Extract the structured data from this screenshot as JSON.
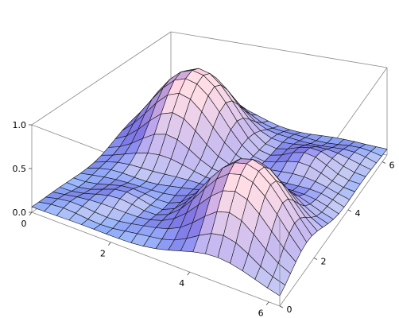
{
  "chart_data": {
    "type": "surface3d",
    "title": "",
    "xlabel": "",
    "ylabel": "",
    "zlabel": "",
    "function": "sin^2(x/2) * sin^2(y/2) with two dominant peaks near (pi, pi) region",
    "xlim": [
      0,
      6.28
    ],
    "ylim": [
      0,
      6.28
    ],
    "zlim": [
      0,
      1.0
    ],
    "grid_lines": 20,
    "x_ticks": [
      "0",
      "2",
      "4",
      "6"
    ],
    "y_ticks": [
      "0",
      "2",
      "4",
      "6"
    ],
    "z_ticks": [
      "0.0",
      "0.5",
      "1.0"
    ],
    "peaks": [
      {
        "x": 1.6,
        "y": 4.7,
        "z": 1.0
      },
      {
        "x": 4.7,
        "y": 1.6,
        "z": 1.0
      }
    ],
    "box": true,
    "colors": {
      "low": "#8fb6ff",
      "mid": "#9a8cff",
      "high": "#ffc9e0",
      "mesh": "#000000"
    }
  }
}
